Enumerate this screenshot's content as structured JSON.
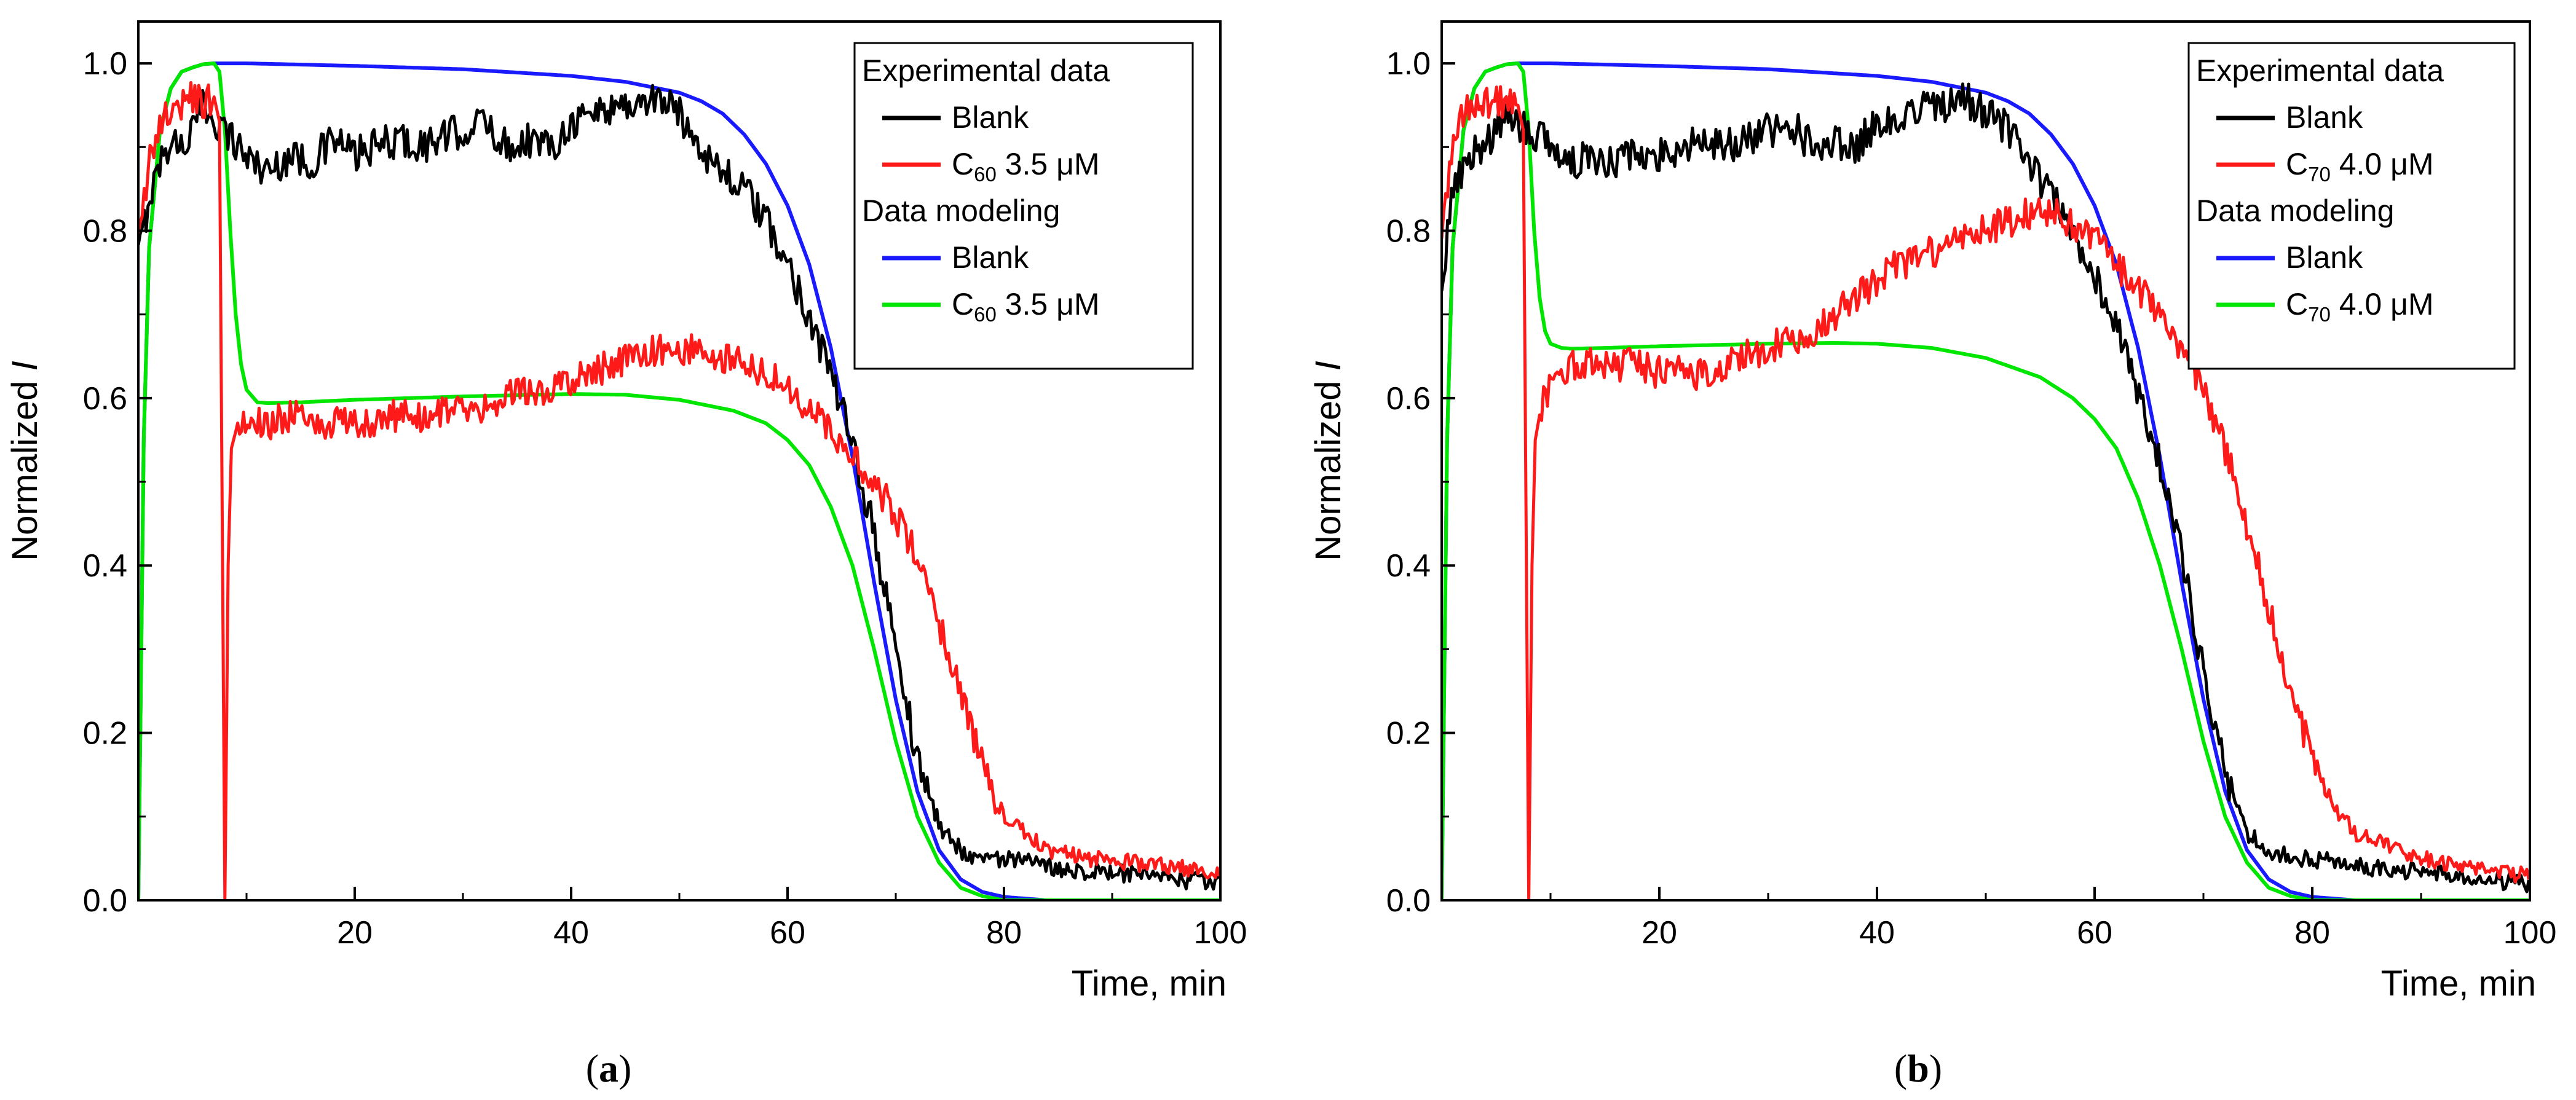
{
  "figure": {
    "panels": [
      "a",
      "b"
    ],
    "panel_labels": [
      "(a)",
      "(b)"
    ]
  },
  "chart_data": [
    {
      "type": "line",
      "panel": "a",
      "title": "",
      "xlabel": "Time, min",
      "ylabel": "Normalized I",
      "xlim": [
        0,
        100
      ],
      "ylim": [
        0,
        1.05
      ],
      "xticks": [
        20,
        40,
        60,
        80,
        100
      ],
      "yticks": [
        0.0,
        0.2,
        0.4,
        0.6,
        0.8,
        1.0
      ],
      "ytick_labels": [
        "0.0",
        "0.2",
        "0.4",
        "0.6",
        "0.8",
        "1.0"
      ],
      "grid": false,
      "legend_position": "top-right",
      "legend_groups": [
        {
          "title": "Experimental data",
          "entries": [
            0,
            1
          ]
        },
        {
          "title": "Data modeling",
          "entries": [
            2,
            3
          ]
        }
      ],
      "series": [
        {
          "name": "Blank",
          "label_main": "Blank",
          "label_sub": "",
          "label_rest": "",
          "group": "Experimental data",
          "color": "#000000",
          "kind": "experimental",
          "x": [
            0,
            1,
            2,
            3,
            4,
            5,
            6,
            8,
            10,
            12,
            14,
            16,
            18,
            20,
            22,
            24,
            26,
            28,
            30,
            32,
            34,
            36,
            38,
            40,
            42,
            44,
            46,
            48,
            50,
            52,
            54,
            56,
            58,
            60,
            62,
            64,
            66,
            68,
            70,
            72,
            74,
            76,
            78,
            80,
            84,
            88,
            92,
            96,
            100
          ],
          "y": [
            0.77,
            0.84,
            0.88,
            0.91,
            0.9,
            0.92,
            0.95,
            0.92,
            0.89,
            0.87,
            0.89,
            0.88,
            0.91,
            0.89,
            0.9,
            0.91,
            0.9,
            0.91,
            0.92,
            0.93,
            0.9,
            0.91,
            0.9,
            0.93,
            0.94,
            0.95,
            0.95,
            0.96,
            0.94,
            0.9,
            0.87,
            0.85,
            0.81,
            0.76,
            0.7,
            0.63,
            0.54,
            0.44,
            0.3,
            0.17,
            0.09,
            0.06,
            0.05,
            0.05,
            0.04,
            0.035,
            0.03,
            0.025,
            0.02
          ],
          "noise": 0.022
        },
        {
          "name": "C60 3.5 μM",
          "label_main": "C",
          "label_sub": "60",
          "label_rest": " 3.5 μM",
          "group": "Experimental data",
          "color": "#ff1a1a",
          "kind": "experimental",
          "x": [
            0,
            1,
            2,
            3,
            4,
            5,
            6,
            7,
            7.5,
            8,
            8.3,
            8.6,
            9,
            10,
            12,
            14,
            16,
            18,
            20,
            22,
            24,
            26,
            28,
            30,
            32,
            34,
            36,
            38,
            40,
            42,
            44,
            46,
            48,
            50,
            52,
            54,
            56,
            58,
            60,
            62,
            64,
            66,
            68,
            70,
            72,
            74,
            76,
            78,
            80,
            82,
            84,
            88,
            92,
            96,
            100
          ],
          "y": [
            0.78,
            0.88,
            0.93,
            0.95,
            0.95,
            0.96,
            0.95,
            0.96,
            0.93,
            0.0,
            0.4,
            0.54,
            0.56,
            0.57,
            0.57,
            0.58,
            0.57,
            0.57,
            0.57,
            0.57,
            0.58,
            0.58,
            0.58,
            0.59,
            0.59,
            0.6,
            0.61,
            0.61,
            0.62,
            0.63,
            0.64,
            0.65,
            0.66,
            0.66,
            0.66,
            0.65,
            0.64,
            0.63,
            0.61,
            0.59,
            0.56,
            0.53,
            0.5,
            0.46,
            0.41,
            0.33,
            0.25,
            0.16,
            0.1,
            0.08,
            0.06,
            0.05,
            0.045,
            0.04,
            0.03
          ],
          "noise": 0.02
        },
        {
          "name": "Blank",
          "label_main": "Blank",
          "label_sub": "",
          "label_rest": "",
          "group": "Data modeling",
          "color": "#1a1aff",
          "kind": "model",
          "x": [
            0,
            0.5,
            1,
            2,
            3,
            4,
            5,
            6,
            7,
            8,
            10,
            20,
            30,
            40,
            45,
            50,
            52,
            54,
            56,
            58,
            60,
            62,
            64,
            66,
            68,
            70,
            72,
            74,
            76,
            78,
            80,
            82,
            84,
            90,
            100
          ],
          "y": [
            0.0,
            0.55,
            0.78,
            0.92,
            0.97,
            0.99,
            0.995,
            0.999,
            1.0,
            1.0,
            1.0,
            0.997,
            0.993,
            0.985,
            0.978,
            0.965,
            0.955,
            0.94,
            0.915,
            0.88,
            0.83,
            0.76,
            0.66,
            0.53,
            0.38,
            0.24,
            0.13,
            0.06,
            0.025,
            0.01,
            0.004,
            0.002,
            0.0,
            0.0,
            0.0
          ]
        },
        {
          "name": "C60 3.5 μM",
          "label_main": "C",
          "label_sub": "60",
          "label_rest": " 3.5 μM",
          "group": "Data modeling",
          "color": "#00e600",
          "kind": "model",
          "x": [
            0,
            0.5,
            1,
            2,
            3,
            4,
            5,
            6,
            7,
            7.5,
            8,
            8.5,
            9,
            9.5,
            10,
            11,
            12,
            15,
            20,
            30,
            40,
            45,
            50,
            55,
            58,
            60,
            62,
            64,
            66,
            68,
            70,
            72,
            74,
            76,
            78,
            80,
            100
          ],
          "y": [
            0.0,
            0.55,
            0.78,
            0.92,
            0.97,
            0.99,
            0.995,
            0.999,
            1.0,
            0.99,
            0.92,
            0.8,
            0.7,
            0.64,
            0.61,
            0.595,
            0.594,
            0.595,
            0.598,
            0.602,
            0.605,
            0.604,
            0.598,
            0.585,
            0.57,
            0.55,
            0.52,
            0.47,
            0.4,
            0.3,
            0.19,
            0.1,
            0.045,
            0.015,
            0.005,
            0.0,
            0.0
          ]
        }
      ]
    },
    {
      "type": "line",
      "panel": "b",
      "title": "",
      "xlabel": "Time, min",
      "ylabel": "Normalized I",
      "xlim": [
        0,
        100
      ],
      "ylim": [
        0,
        1.05
      ],
      "xticks": [
        20,
        40,
        60,
        80,
        100
      ],
      "yticks": [
        0.0,
        0.2,
        0.4,
        0.6,
        0.8,
        1.0
      ],
      "ytick_labels": [
        "0.0",
        "0.2",
        "0.4",
        "0.6",
        "0.8",
        "1.0"
      ],
      "grid": false,
      "legend_position": "top-right",
      "legend_groups": [
        {
          "title": "Experimental data",
          "entries": [
            0,
            1
          ]
        },
        {
          "title": "Data modeling",
          "entries": [
            2,
            3
          ]
        }
      ],
      "series": [
        {
          "name": "Blank",
          "label_main": "Blank",
          "label_sub": "",
          "label_rest": "",
          "group": "Experimental data",
          "color": "#000000",
          "kind": "experimental",
          "x": [
            0,
            1,
            2,
            3,
            4,
            5,
            6,
            8,
            10,
            12,
            14,
            16,
            18,
            20,
            22,
            24,
            26,
            28,
            30,
            32,
            34,
            36,
            38,
            40,
            42,
            44,
            46,
            48,
            50,
            52,
            54,
            56,
            58,
            60,
            62,
            64,
            66,
            68,
            70,
            72,
            74,
            76,
            78,
            80,
            84,
            88,
            92,
            96,
            100
          ],
          "y": [
            0.74,
            0.84,
            0.88,
            0.9,
            0.9,
            0.92,
            0.94,
            0.92,
            0.9,
            0.88,
            0.89,
            0.88,
            0.9,
            0.89,
            0.9,
            0.91,
            0.9,
            0.91,
            0.92,
            0.93,
            0.9,
            0.91,
            0.9,
            0.93,
            0.94,
            0.95,
            0.95,
            0.96,
            0.94,
            0.92,
            0.88,
            0.84,
            0.8,
            0.75,
            0.69,
            0.61,
            0.52,
            0.41,
            0.27,
            0.15,
            0.08,
            0.06,
            0.05,
            0.05,
            0.04,
            0.035,
            0.03,
            0.025,
            0.02
          ],
          "noise": 0.022
        },
        {
          "name": "C70 4.0 μM",
          "label_main": "C",
          "label_sub": "70",
          "label_rest": " 4.0 μM",
          "group": "Experimental data",
          "color": "#ff1a1a",
          "kind": "experimental",
          "x": [
            0,
            1,
            2,
            3,
            4,
            5,
            6,
            7,
            7.5,
            8,
            8.3,
            8.6,
            9,
            10,
            12,
            14,
            16,
            18,
            20,
            22,
            24,
            26,
            28,
            30,
            32,
            34,
            36,
            38,
            40,
            42,
            44,
            46,
            48,
            50,
            52,
            54,
            56,
            58,
            60,
            62,
            64,
            66,
            68,
            70,
            72,
            74,
            76,
            78,
            80,
            82,
            84,
            88,
            92,
            96,
            100
          ],
          "y": [
            0.8,
            0.9,
            0.94,
            0.95,
            0.95,
            0.96,
            0.95,
            0.95,
            0.92,
            0.0,
            0.4,
            0.55,
            0.58,
            0.62,
            0.64,
            0.64,
            0.64,
            0.64,
            0.63,
            0.63,
            0.63,
            0.64,
            0.65,
            0.66,
            0.67,
            0.68,
            0.7,
            0.72,
            0.74,
            0.76,
            0.77,
            0.78,
            0.79,
            0.8,
            0.81,
            0.82,
            0.82,
            0.81,
            0.79,
            0.76,
            0.73,
            0.7,
            0.66,
            0.61,
            0.54,
            0.45,
            0.35,
            0.25,
            0.17,
            0.11,
            0.08,
            0.06,
            0.045,
            0.035,
            0.03
          ],
          "noise": 0.02
        },
        {
          "name": "Blank",
          "label_main": "Blank",
          "label_sub": "",
          "label_rest": "",
          "group": "Data modeling",
          "color": "#1a1aff",
          "kind": "model",
          "x": [
            0,
            0.5,
            1,
            2,
            3,
            4,
            5,
            6,
            7,
            8,
            10,
            20,
            30,
            40,
            45,
            50,
            52,
            54,
            56,
            58,
            60,
            62,
            64,
            66,
            68,
            70,
            72,
            74,
            76,
            78,
            80,
            82,
            84,
            90,
            100
          ],
          "y": [
            0.0,
            0.55,
            0.78,
            0.92,
            0.97,
            0.99,
            0.995,
            0.999,
            1.0,
            1.0,
            1.0,
            0.997,
            0.993,
            0.985,
            0.978,
            0.965,
            0.955,
            0.94,
            0.915,
            0.88,
            0.83,
            0.76,
            0.66,
            0.53,
            0.38,
            0.24,
            0.13,
            0.06,
            0.025,
            0.01,
            0.004,
            0.002,
            0.0,
            0.0,
            0.0
          ]
        },
        {
          "name": "C70 4.0 μM",
          "label_main": "C",
          "label_sub": "70",
          "label_rest": " 4.0 μM",
          "group": "Data modeling",
          "color": "#00e600",
          "kind": "model",
          "x": [
            0,
            0.5,
            1,
            2,
            3,
            4,
            5,
            6,
            7,
            7.5,
            8,
            8.5,
            9,
            9.5,
            10,
            11,
            12,
            15,
            20,
            30,
            36,
            40,
            45,
            50,
            55,
            58,
            60,
            62,
            64,
            66,
            68,
            70,
            72,
            74,
            76,
            78,
            80,
            100
          ],
          "y": [
            0.0,
            0.55,
            0.78,
            0.92,
            0.97,
            0.99,
            0.995,
            0.999,
            1.0,
            0.99,
            0.92,
            0.8,
            0.72,
            0.68,
            0.665,
            0.66,
            0.659,
            0.66,
            0.662,
            0.665,
            0.666,
            0.665,
            0.66,
            0.648,
            0.625,
            0.6,
            0.575,
            0.54,
            0.48,
            0.4,
            0.3,
            0.19,
            0.1,
            0.045,
            0.015,
            0.005,
            0.0,
            0.0
          ]
        }
      ]
    }
  ]
}
